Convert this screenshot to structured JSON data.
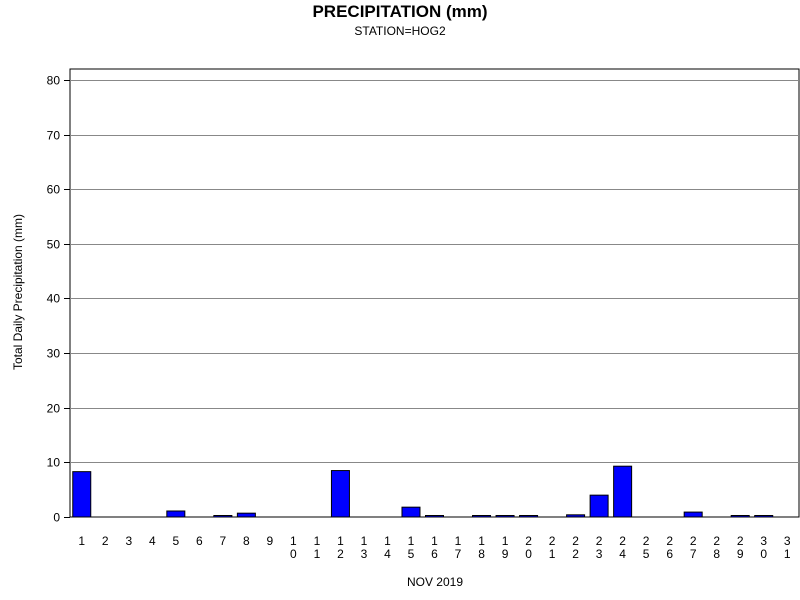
{
  "chart_data": {
    "type": "bar",
    "title": "PRECIPITATION (mm)",
    "subtitle": "STATION=HOG2",
    "xlabel": "NOV 2019",
    "ylabel": "Total Daily Precipitation (mm)",
    "ylim": [
      0,
      82
    ],
    "yticks": [
      0,
      10,
      20,
      30,
      40,
      50,
      60,
      70,
      80
    ],
    "ytick_labels": [
      "0",
      "10",
      "20",
      "30",
      "40",
      "50",
      "60",
      "70",
      "80"
    ],
    "grid": true,
    "bar_color": "#0000ff",
    "categories": [
      "1",
      "2",
      "3",
      "4",
      "5",
      "6",
      "7",
      "8",
      "9",
      "10",
      "11",
      "12",
      "13",
      "14",
      "15",
      "16",
      "17",
      "18",
      "19",
      "20",
      "21",
      "22",
      "23",
      "24",
      "25",
      "26",
      "27",
      "28",
      "29",
      "30",
      "31"
    ],
    "values": [
      8.3,
      0,
      0,
      0,
      1.1,
      0,
      0.2,
      0.7,
      0,
      0,
      0,
      8.5,
      0,
      0,
      1.8,
      0.2,
      0,
      0.1,
      0.1,
      0.1,
      0,
      0.4,
      4.0,
      9.3,
      0,
      0,
      0.9,
      0,
      0.1,
      0.1,
      null
    ]
  }
}
